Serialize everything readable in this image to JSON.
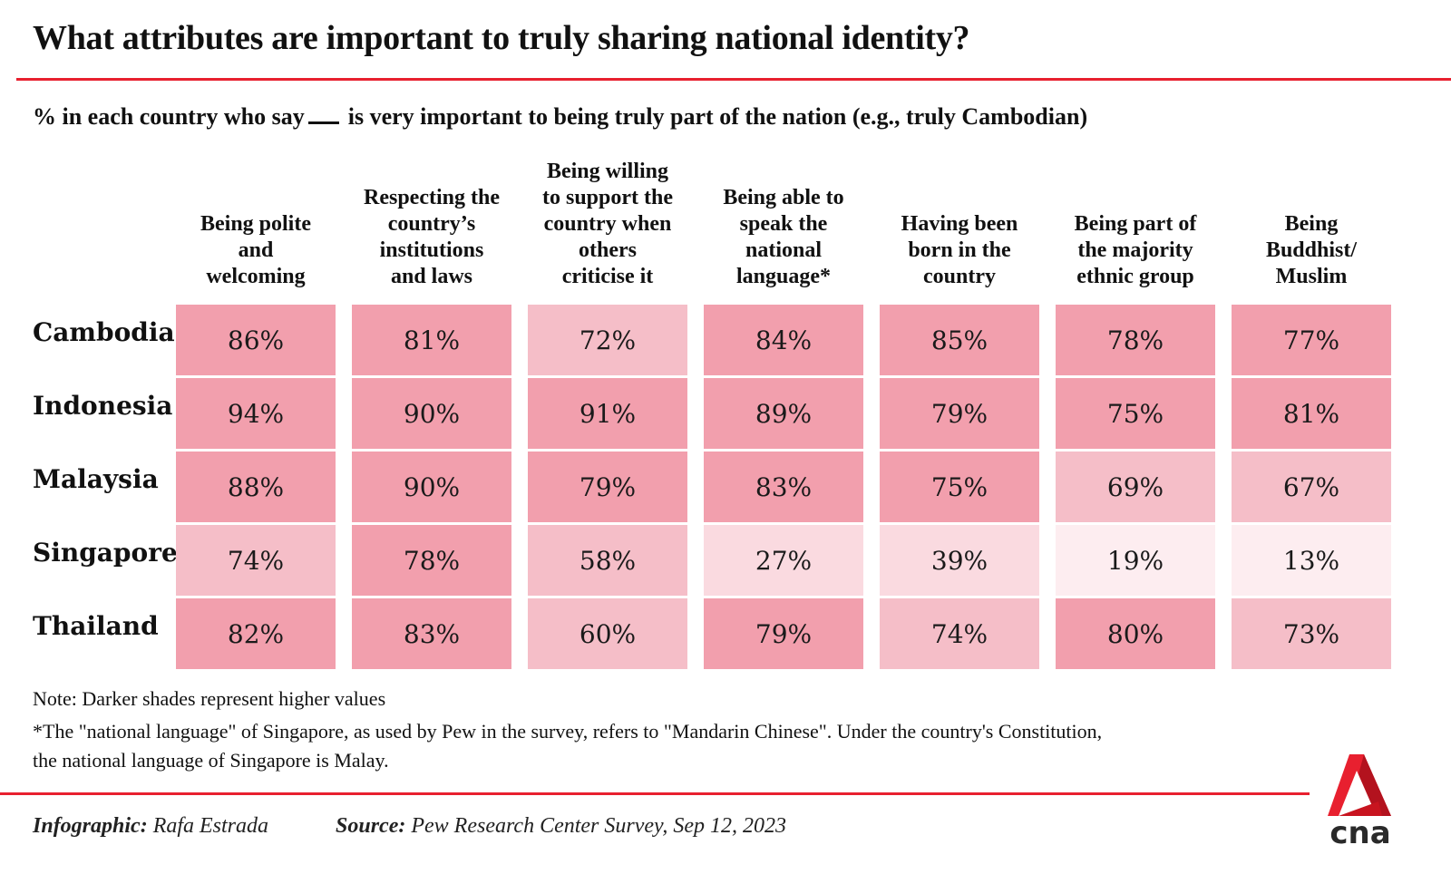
{
  "title": "What attributes are important to truly sharing national identity?",
  "subtitle": {
    "before": "% in each country who say",
    "after": "is very important to being truly part of the nation (e.g., truly Cambodian)"
  },
  "chart_data": {
    "type": "heatmap",
    "title": "What attributes are important to truly sharing national identity?",
    "subtitle": "% in each country who say ___ is very important to being truly part of the nation (e.g., truly Cambodian)",
    "columns": [
      "Being polite\nand\nwelcoming",
      "Respecting the\ncountry’s\ninstitutions\nand laws",
      "Being willing\nto support the\ncountry when\nothers\ncriticise it",
      "Being able to\nspeak the\nnational\nlanguage*",
      "Having been\nborn in the\ncountry",
      "Being part of\nthe majority\nethnic group",
      "Being\nBuddhist/\nMuslim"
    ],
    "rows": [
      "Cambodia",
      "Indonesia",
      "Malaysia",
      "Singapore",
      "Thailand"
    ],
    "values": [
      [
        86,
        81,
        72,
        84,
        85,
        78,
        77
      ],
      [
        94,
        90,
        91,
        89,
        79,
        75,
        81
      ],
      [
        88,
        90,
        79,
        83,
        75,
        69,
        67
      ],
      [
        74,
        78,
        58,
        27,
        39,
        19,
        13
      ],
      [
        82,
        83,
        60,
        79,
        74,
        80,
        73
      ]
    ],
    "unit": "%",
    "shades": {
      "high": "#f29fad",
      "mid": "#f5bec8",
      "low": "#fadae0",
      "lowest": "#fdedf0"
    },
    "legend_note": "Darker shades represent higher values"
  },
  "notes": {
    "note1": "Note: Darker shades represent higher values",
    "note2_line1": "*The \"national language\" of Singapore, as used by Pew in the survey, refers to \"Mandarin Chinese\". Under the country's Constitution,",
    "note2_line2": "the national language of Singapore is Malay."
  },
  "credits": {
    "infographic_label": "Infographic:",
    "infographic_value": "Rafa Estrada",
    "source_label": "Source:",
    "source_value": "Pew Research Center Survey, Sep 12, 2023"
  },
  "logo": {
    "text": "cna",
    "brand_color": "#e8202f"
  }
}
